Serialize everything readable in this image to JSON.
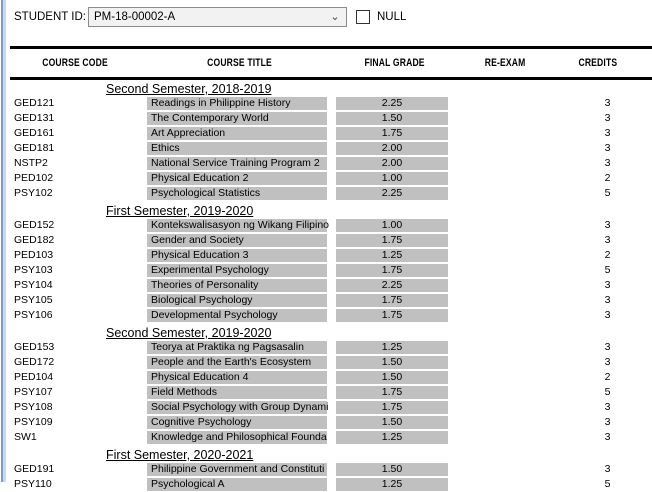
{
  "param_bar": {
    "label": "STUDENT ID:",
    "value": "PM-18-00002-A",
    "chevron_icon": "⌄",
    "null_label": "NULL",
    "null_checked": false
  },
  "table": {
    "headers": [
      "COURSE CODE",
      "COURSE TITLE",
      "FINAL GRADE",
      "RE-EXAM",
      "CREDITS"
    ],
    "sections": [
      {
        "title": "Second Semester, 2018-2019",
        "rows": [
          {
            "code": "GED121",
            "title": "Readings in Philippine History",
            "grade": "2.25",
            "reexam": "",
            "credits": "3"
          },
          {
            "code": "GED131",
            "title": "The Contemporary World",
            "grade": "1.50",
            "reexam": "",
            "credits": "3"
          },
          {
            "code": "GED161",
            "title": "Art Appreciation",
            "grade": "1.75",
            "reexam": "",
            "credits": "3"
          },
          {
            "code": "GED181",
            "title": "Ethics",
            "grade": "2.00",
            "reexam": "",
            "credits": "3"
          },
          {
            "code": "NSTP2",
            "title": "National Service Training Program 2",
            "grade": "2.00",
            "reexam": "",
            "credits": "3"
          },
          {
            "code": "PED102",
            "title": "Physical Education 2",
            "grade": "1.00",
            "reexam": "",
            "credits": "2"
          },
          {
            "code": "PSY102",
            "title": "Psychological Statistics",
            "grade": "2.25",
            "reexam": "",
            "credits": "5"
          }
        ]
      },
      {
        "title": "First Semester, 2019-2020",
        "rows": [
          {
            "code": "GED152",
            "title": "Kontekswalisasyon ng Wikang Filipino",
            "grade": "1.00",
            "reexam": "",
            "credits": "3"
          },
          {
            "code": "GED182",
            "title": "Gender and Society",
            "grade": "1.75",
            "reexam": "",
            "credits": "3"
          },
          {
            "code": "PED103",
            "title": "Physical Education 3",
            "grade": "1.25",
            "reexam": "",
            "credits": "2"
          },
          {
            "code": "PSY103",
            "title": "Experimental Psychology",
            "grade": "1.75",
            "reexam": "",
            "credits": "5"
          },
          {
            "code": "PSY104",
            "title": "Theories of Personality",
            "grade": "2.25",
            "reexam": "",
            "credits": "3"
          },
          {
            "code": "PSY105",
            "title": "Biological Psychology",
            "grade": "1.75",
            "reexam": "",
            "credits": "3"
          },
          {
            "code": "PSY106",
            "title": "Developmental Psychology",
            "grade": "1.75",
            "reexam": "",
            "credits": "3"
          }
        ]
      },
      {
        "title": "Second Semester, 2019-2020",
        "rows": [
          {
            "code": "GED153",
            "title": "Teorya at Praktika ng Pagsasalin",
            "grade": "1.25",
            "reexam": "",
            "credits": "3"
          },
          {
            "code": "GED172",
            "title": "People and the Earth's Ecosystem",
            "grade": "1.50",
            "reexam": "",
            "credits": "3"
          },
          {
            "code": "PED104",
            "title": "Physical Education 4",
            "grade": "1.50",
            "reexam": "",
            "credits": "2"
          },
          {
            "code": "PSY107",
            "title": "Field Methods",
            "grade": "1.75",
            "reexam": "",
            "credits": "5"
          },
          {
            "code": "PSY108",
            "title": "Social Psychology with Group Dynami",
            "grade": "1.75",
            "reexam": "",
            "credits": "3"
          },
          {
            "code": "PSY109",
            "title": "Cognitive Psychology",
            "grade": "1.50",
            "reexam": "",
            "credits": "3"
          },
          {
            "code": "SW1",
            "title": "Knowledge and Philosophical Founda",
            "grade": "1.25",
            "reexam": "",
            "credits": "3"
          }
        ]
      },
      {
        "title": "First Semester, 2020-2021",
        "rows": [
          {
            "code": "GED191",
            "title": "Philippine Government and Constituti",
            "grade": "1.50",
            "reexam": "",
            "credits": "3"
          },
          {
            "code": "PSY110",
            "title": "Psychological A",
            "grade": "1.25",
            "reexam": "",
            "credits": "5"
          }
        ]
      }
    ]
  },
  "colors": {
    "cell_gray": "#c0c0c0",
    "rule_black": "#000000",
    "pane_edge_blue": "#7e9bd1",
    "pane_edge_light_blue": "#cdd7eb",
    "dropdown_bg": "#f2f2f2",
    "dropdown_border": "#8a8a8a"
  }
}
